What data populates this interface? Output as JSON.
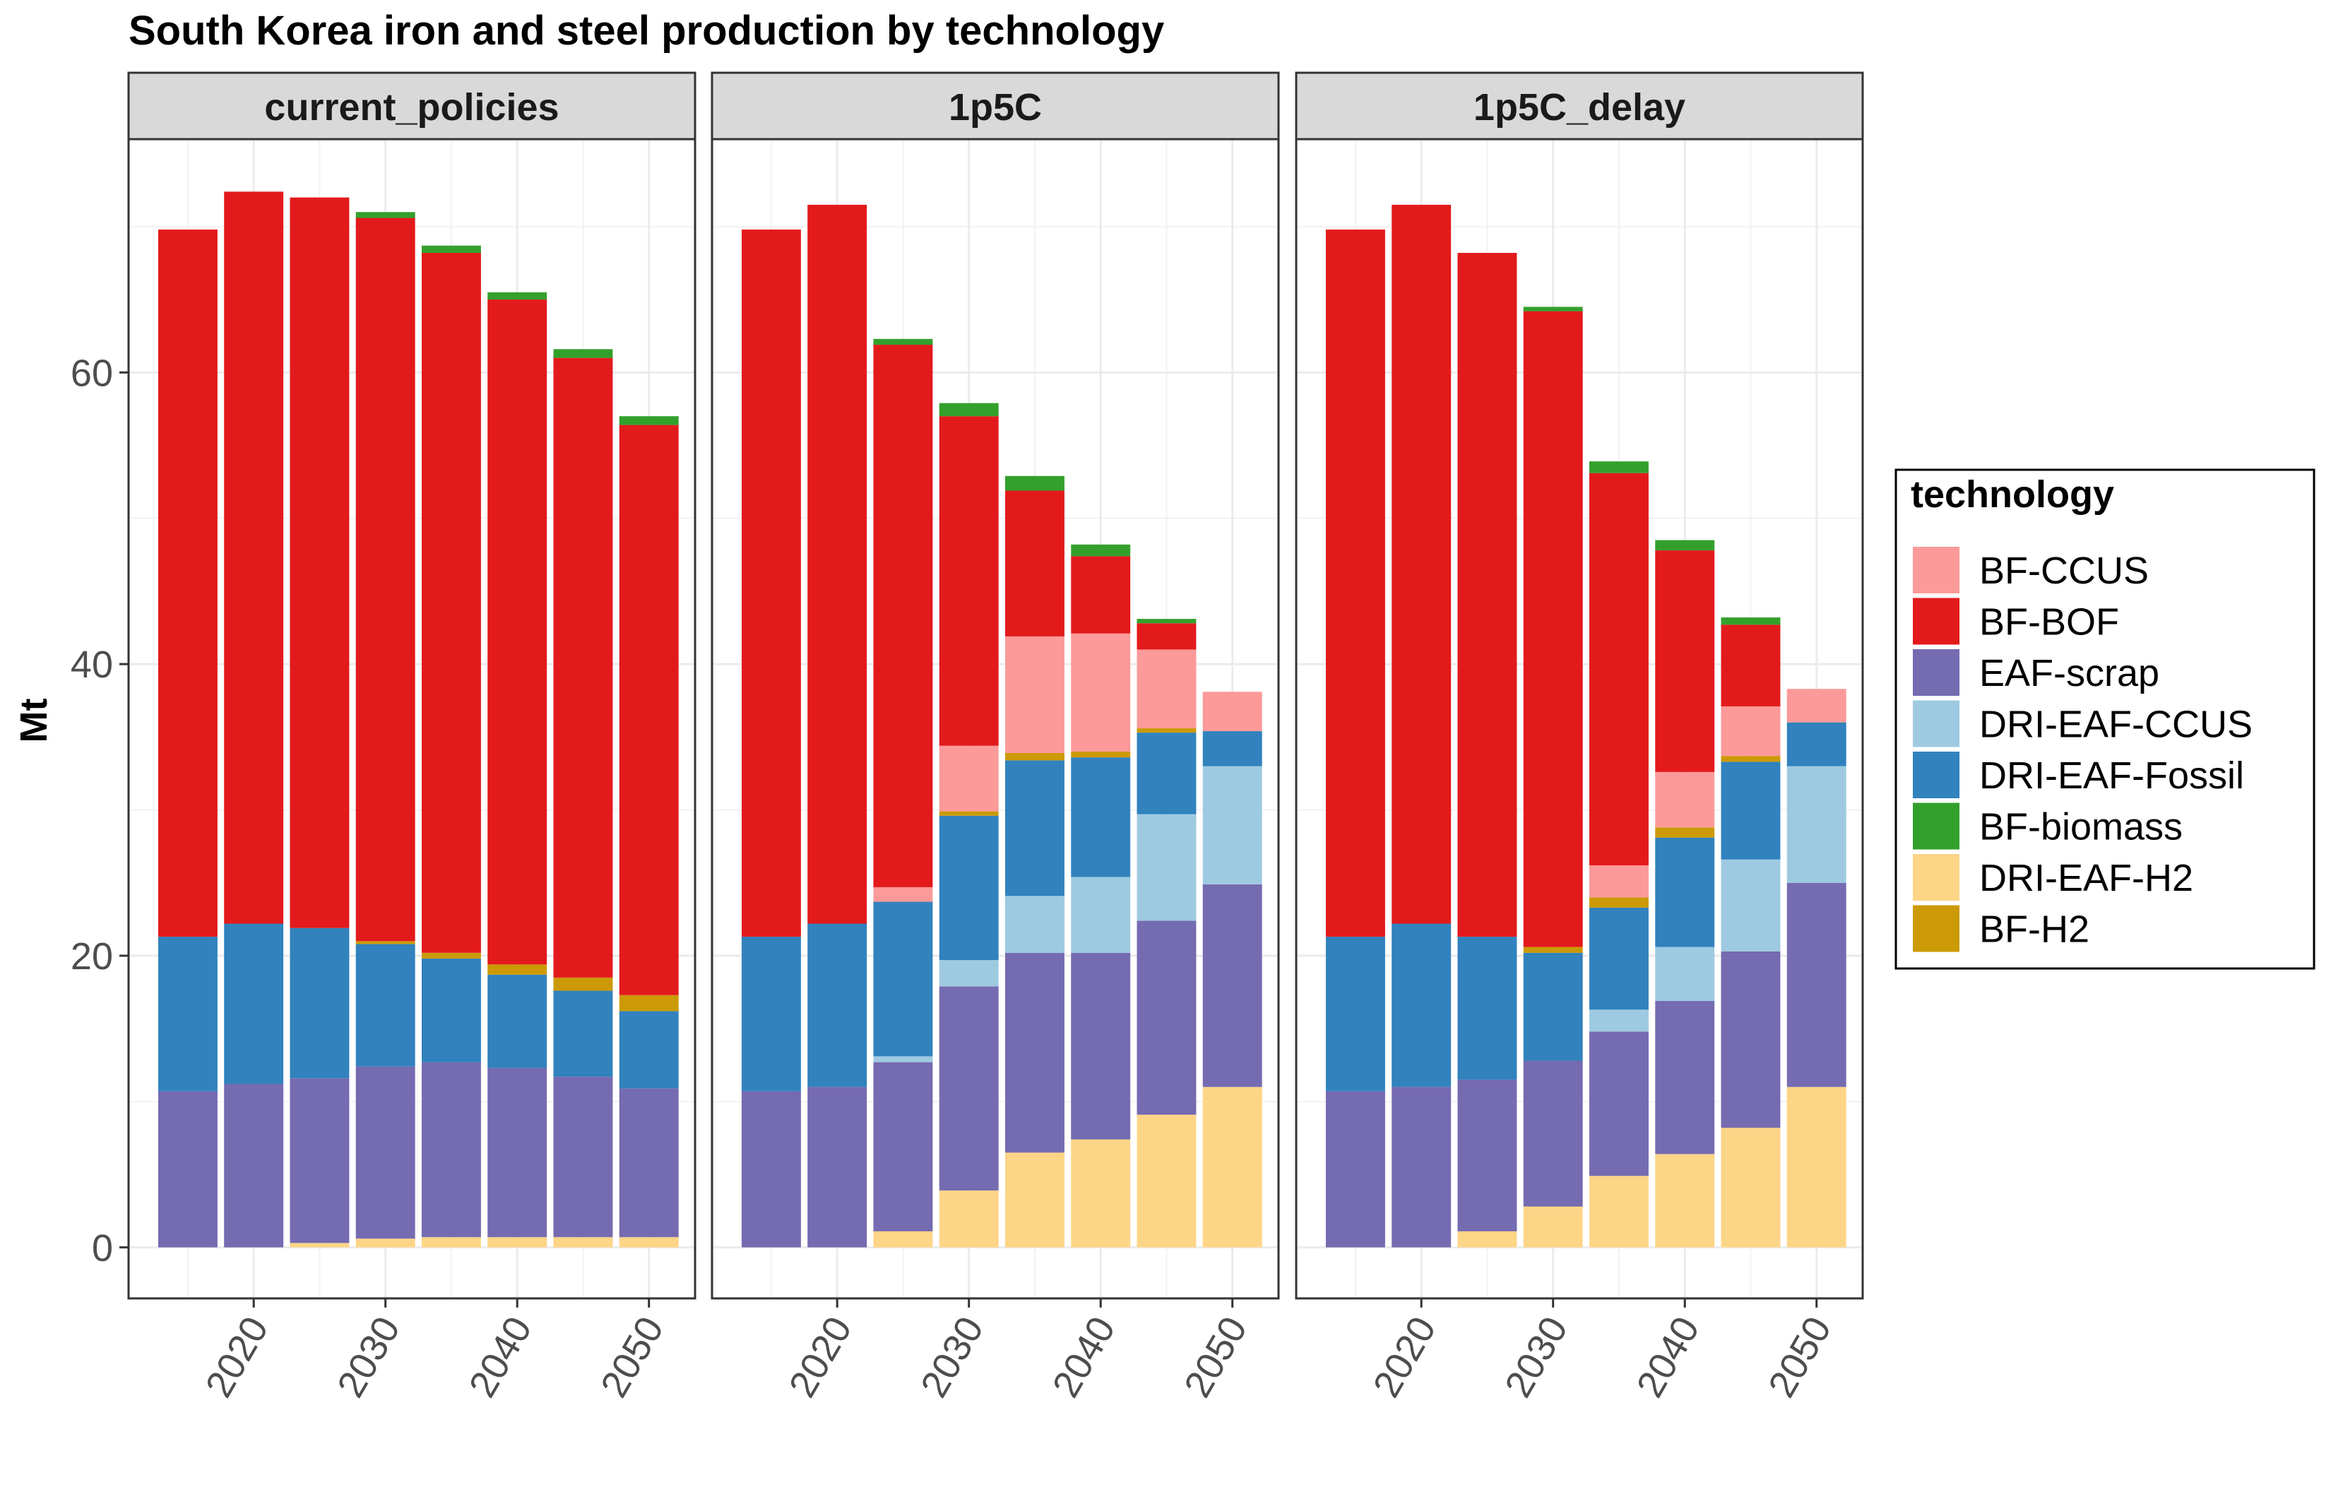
{
  "chart_data": {
    "type": "bar",
    "stacked": true,
    "title": "South Korea iron and steel production by technology",
    "ylabel": "Mt",
    "xlabel": "",
    "ylim": [
      -3.5,
      76
    ],
    "y_ticks": [
      0,
      20,
      40,
      60
    ],
    "x_ticks": [
      2020,
      2030,
      2040,
      2050
    ],
    "xlim": [
      2010.5,
      2053.5
    ],
    "grid": true,
    "legend": {
      "title": "technology",
      "placement": "right",
      "order": [
        "BF-CCUS",
        "BF-BOF",
        "EAF-scrap",
        "DRI-EAF-CCUS",
        "DRI-EAF-Fossil",
        "BF-biomass",
        "DRI-EAF-H2",
        "BF-H2"
      ]
    },
    "colors": {
      "BF-CCUS": "#fb9a99",
      "BF-BOF": "#e31a1c",
      "EAF-scrap": "#756bb1",
      "DRI-EAF-CCUS": "#9ecae1",
      "DRI-EAF-Fossil": "#3182bd",
      "BF-biomass": "#33a02c",
      "DRI-EAF-H2": "#fdd587",
      "BF-H2": "#cc9a06"
    },
    "stack_order_bottom_to_top": [
      "DRI-EAF-H2",
      "EAF-scrap",
      "DRI-EAF-CCUS",
      "DRI-EAF-Fossil",
      "BF-H2",
      "BF-CCUS",
      "BF-BOF",
      "BF-biomass"
    ],
    "years": [
      2015,
      2020,
      2025,
      2030,
      2035,
      2040,
      2045,
      2050
    ],
    "panels": [
      {
        "name": "current_policies",
        "series": [
          {
            "name": "DRI-EAF-H2",
            "values": [
              0,
              0,
              0.3,
              0.6,
              0.7,
              0.7,
              0.7,
              0.7
            ]
          },
          {
            "name": "EAF-scrap",
            "values": [
              10.7,
              11.2,
              11.3,
              11.8,
              12.0,
              11.6,
              11.0,
              10.2
            ]
          },
          {
            "name": "DRI-EAF-CCUS",
            "values": [
              0,
              0,
              0,
              0,
              0,
              0,
              0,
              0
            ]
          },
          {
            "name": "DRI-EAF-Fossil",
            "values": [
              10.6,
              11.0,
              10.3,
              8.4,
              7.1,
              6.4,
              5.9,
              5.3
            ]
          },
          {
            "name": "BF-H2",
            "values": [
              0,
              0,
              0,
              0.2,
              0.4,
              0.7,
              0.9,
              1.1
            ]
          },
          {
            "name": "BF-CCUS",
            "values": [
              0,
              0,
              0,
              0,
              0,
              0,
              0,
              0
            ]
          },
          {
            "name": "BF-BOF",
            "values": [
              48.5,
              50.2,
              50.1,
              49.6,
              48.0,
              45.6,
              42.5,
              39.1
            ]
          },
          {
            "name": "BF-biomass",
            "values": [
              0,
              0,
              0,
              0.4,
              0.5,
              0.5,
              0.6,
              0.6
            ]
          }
        ]
      },
      {
        "name": "1p5C",
        "series": [
          {
            "name": "DRI-EAF-H2",
            "values": [
              0,
              0,
              1.1,
              3.9,
              6.5,
              7.4,
              9.1,
              11.0
            ]
          },
          {
            "name": "EAF-scrap",
            "values": [
              10.7,
              11.0,
              11.6,
              14.0,
              13.7,
              12.8,
              13.3,
              13.9
            ]
          },
          {
            "name": "DRI-EAF-CCUS",
            "values": [
              0,
              0,
              0.4,
              1.8,
              3.9,
              5.2,
              7.3,
              8.1
            ]
          },
          {
            "name": "DRI-EAF-Fossil",
            "values": [
              10.6,
              11.2,
              10.6,
              9.9,
              9.3,
              8.2,
              5.6,
              2.4
            ]
          },
          {
            "name": "BF-H2",
            "values": [
              0,
              0,
              0,
              0.3,
              0.5,
              0.4,
              0.3,
              0
            ]
          },
          {
            "name": "BF-CCUS",
            "values": [
              0,
              0,
              1.0,
              4.5,
              8.0,
              8.1,
              5.4,
              2.7
            ]
          },
          {
            "name": "BF-BOF",
            "values": [
              48.5,
              49.3,
              37.2,
              22.6,
              10.0,
              5.3,
              1.8,
              0
            ]
          },
          {
            "name": "BF-biomass",
            "values": [
              0,
              0,
              0.4,
              0.9,
              1.0,
              0.8,
              0.3,
              0
            ]
          }
        ]
      },
      {
        "name": "1p5C_delay",
        "series": [
          {
            "name": "DRI-EAF-H2",
            "values": [
              0,
              0,
              1.1,
              2.8,
              4.9,
              6.4,
              8.2,
              11.0
            ]
          },
          {
            "name": "EAF-scrap",
            "values": [
              10.7,
              11.0,
              10.4,
              10.0,
              9.9,
              10.5,
              12.1,
              14.0
            ]
          },
          {
            "name": "DRI-EAF-CCUS",
            "values": [
              0,
              0,
              0,
              0,
              1.5,
              3.7,
              6.3,
              8.0
            ]
          },
          {
            "name": "DRI-EAF-Fossil",
            "values": [
              10.6,
              11.2,
              9.8,
              7.4,
              7.0,
              7.5,
              6.7,
              3.0
            ]
          },
          {
            "name": "BF-H2",
            "values": [
              0,
              0,
              0,
              0.4,
              0.7,
              0.7,
              0.4,
              0
            ]
          },
          {
            "name": "BF-CCUS",
            "values": [
              0,
              0,
              0,
              0,
              2.2,
              3.8,
              3.4,
              2.3
            ]
          },
          {
            "name": "BF-BOF",
            "values": [
              48.5,
              49.3,
              46.9,
              43.6,
              26.9,
              15.2,
              5.6,
              0
            ]
          },
          {
            "name": "BF-biomass",
            "values": [
              0,
              0,
              0,
              0.3,
              0.8,
              0.7,
              0.5,
              0
            ]
          }
        ]
      }
    ]
  }
}
